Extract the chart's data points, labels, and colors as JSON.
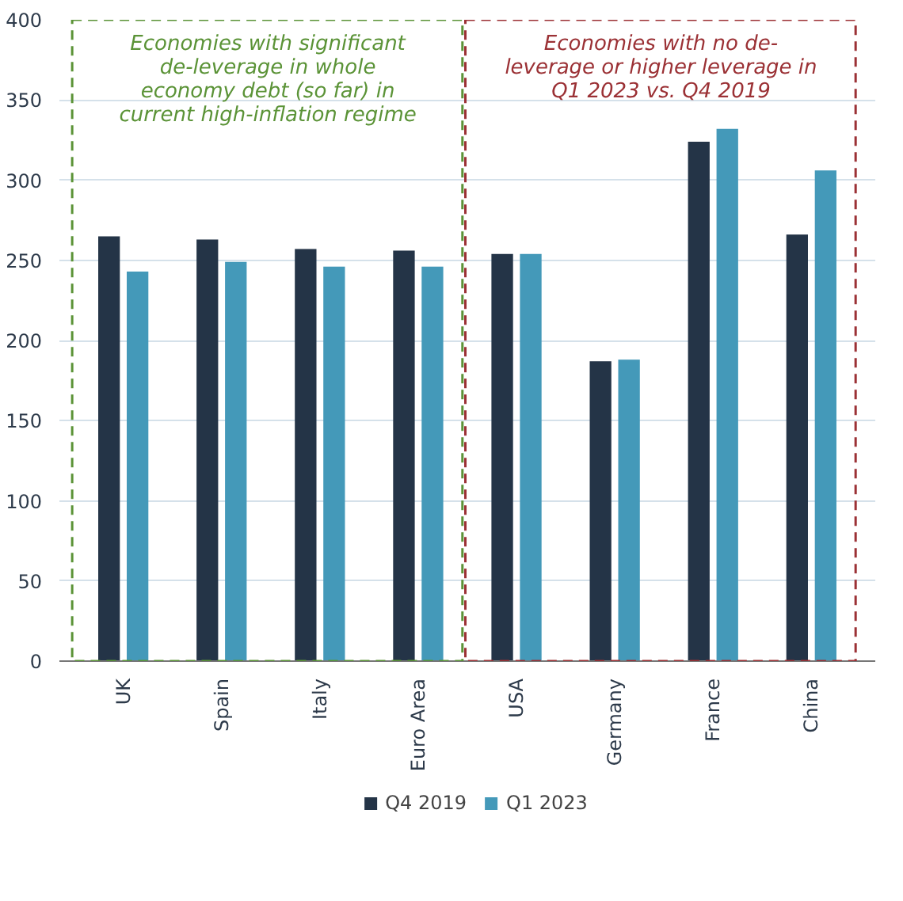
{
  "chart_data": {
    "type": "bar",
    "categories": [
      "UK",
      "Spain",
      "Italy",
      "Euro Area",
      "USA",
      "Germany",
      "France",
      "China"
    ],
    "series": [
      {
        "name": "Q4 2019",
        "color": "#243447",
        "values": [
          265,
          263,
          257,
          256,
          254,
          187,
          324,
          266
        ]
      },
      {
        "name": "Q1 2023",
        "color": "#4499b9",
        "values": [
          243,
          249,
          246,
          246,
          254,
          188,
          332,
          306
        ]
      }
    ],
    "ylim": [
      0,
      400
    ],
    "yticks": [
      0,
      50,
      100,
      150,
      200,
      250,
      300,
      350,
      400
    ],
    "grid": "y",
    "legend": "bottom",
    "annotations": [
      "Economies with significant\nde-leverage in whole\neconomy debt (so far) in\ncurrent high-inflation regime",
      "Economies with no de-\nleverage or higher leverage in\nQ1 2023 vs. Q4 2019"
    ]
  }
}
